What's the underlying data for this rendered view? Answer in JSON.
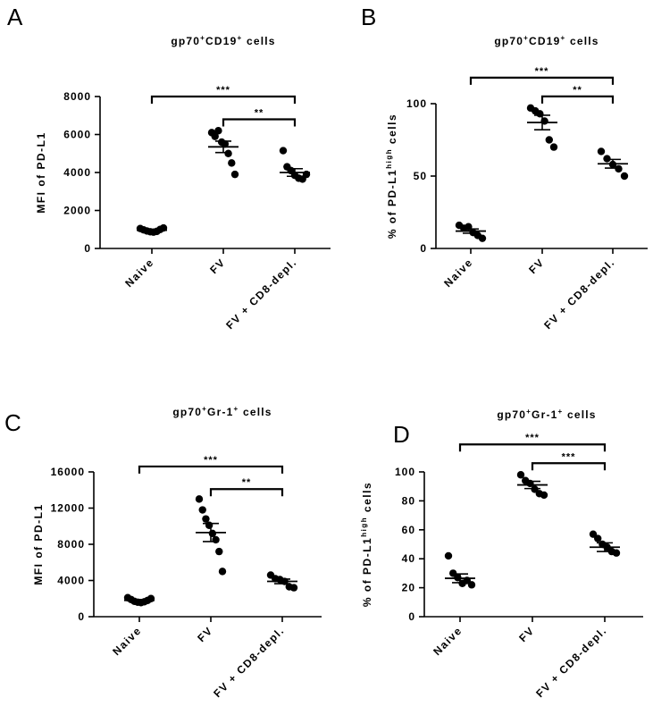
{
  "chart_data": [
    {
      "panel": "A",
      "type": "scatter",
      "title": "gp70",
      "title_parts": [
        {
          "text": "gp70",
          "sup": false
        },
        {
          "text": "+",
          "sup": true
        },
        {
          "text": "CD19",
          "sup": false
        },
        {
          "text": "+",
          "sup": true
        },
        {
          "text": " cells",
          "sup": false
        }
      ],
      "ylabel_parts": [
        {
          "text": "MFI of PD-L1",
          "sup": false
        }
      ],
      "ylim": [
        0,
        8000
      ],
      "yticks": [
        0,
        2000,
        4000,
        6000,
        8000
      ],
      "categories": [
        "Naive",
        "FV",
        "FV + CD8-depl."
      ],
      "groups": [
        {
          "points": [
            1050,
            980,
            920,
            880,
            860,
            900,
            1000,
            1080
          ],
          "mean": 960,
          "sem": 40
        },
        {
          "points": [
            6100,
            5900,
            6200,
            5600,
            5500,
            5000,
            4500,
            3900
          ],
          "mean": 5350,
          "sem": 300
        },
        {
          "points": [
            5150,
            4300,
            4100,
            3850,
            3700,
            3650,
            3900
          ],
          "mean": 4000,
          "sem": 200
        }
      ],
      "comparisons": [
        {
          "from": 0,
          "to": 2,
          "label": "***",
          "y": 8000
        },
        {
          "from": 1,
          "to": 2,
          "label": "**",
          "y": 6800
        }
      ]
    },
    {
      "panel": "B",
      "type": "scatter",
      "title_parts": [
        {
          "text": "gp70",
          "sup": false
        },
        {
          "text": "+",
          "sup": true
        },
        {
          "text": "CD19",
          "sup": false
        },
        {
          "text": "+",
          "sup": true
        },
        {
          "text": " cells",
          "sup": false
        }
      ],
      "ylabel_parts": [
        {
          "text": "% of PD-L1",
          "sup": false
        },
        {
          "text": "high",
          "sup": true
        },
        {
          "text": " cells",
          "sup": false
        }
      ],
      "ylim": [
        0,
        100
      ],
      "yticks": [
        0,
        50,
        100
      ],
      "categories": [
        "Naive",
        "FV",
        "FV + CD8-depl."
      ],
      "groups": [
        {
          "points": [
            16,
            14,
            15,
            11,
            9,
            7
          ],
          "mean": 12,
          "sem": 1.5
        },
        {
          "points": [
            97,
            95,
            93,
            88,
            75,
            70
          ],
          "mean": 87,
          "sem": 5
        },
        {
          "points": [
            67,
            62,
            58,
            55,
            50
          ],
          "mean": 58.5,
          "sem": 3
        }
      ],
      "comparisons": [
        {
          "from": 0,
          "to": 2,
          "label": "***",
          "y": 118
        },
        {
          "from": 1,
          "to": 2,
          "label": "**",
          "y": 105
        }
      ]
    },
    {
      "panel": "C",
      "type": "scatter",
      "title_parts": [
        {
          "text": "gp70",
          "sup": false
        },
        {
          "text": "+",
          "sup": true
        },
        {
          "text": "Gr-1",
          "sup": false
        },
        {
          "text": "+",
          "sup": true
        },
        {
          "text": " cells",
          "sup": false
        }
      ],
      "ylabel_parts": [
        {
          "text": "MFI of PD-L1",
          "sup": false
        }
      ],
      "ylim": [
        0,
        16000
      ],
      "yticks": [
        0,
        4000,
        8000,
        12000,
        16000
      ],
      "categories": [
        "Naive",
        "FV",
        "FV + CD8-depl."
      ],
      "groups": [
        {
          "points": [
            2100,
            1900,
            1700,
            1600,
            1550,
            1650,
            1800,
            2000
          ],
          "mean": 1800,
          "sem": 100
        },
        {
          "points": [
            13000,
            11800,
            10800,
            10100,
            9200,
            8500,
            7200,
            5000
          ],
          "mean": 9300,
          "sem": 1000
        },
        {
          "points": [
            4600,
            4200,
            4100,
            3900,
            3300,
            3200
          ],
          "mean": 3900,
          "sem": 250
        }
      ],
      "comparisons": [
        {
          "from": 0,
          "to": 2,
          "label": "***",
          "y": 16600
        },
        {
          "from": 1,
          "to": 2,
          "label": "**",
          "y": 14100
        }
      ]
    },
    {
      "panel": "D",
      "type": "scatter",
      "title_parts": [
        {
          "text": "gp70",
          "sup": false
        },
        {
          "text": "+",
          "sup": true
        },
        {
          "text": "Gr-1",
          "sup": false
        },
        {
          "text": "+",
          "sup": true
        },
        {
          "text": " cells",
          "sup": false
        }
      ],
      "ylabel_parts": [
        {
          "text": "% of PD-L1",
          "sup": false
        },
        {
          "text": "high",
          "sup": true
        },
        {
          "text": " cells",
          "sup": false
        }
      ],
      "ylim": [
        0,
        100
      ],
      "yticks": [
        0,
        20,
        40,
        60,
        80,
        100
      ],
      "categories": [
        "Naive",
        "FV",
        "FV + CD8-depl."
      ],
      "groups": [
        {
          "points": [
            42,
            30,
            27,
            23,
            25,
            22
          ],
          "mean": 26.5,
          "sem": 3
        },
        {
          "points": [
            98,
            94,
            92,
            88,
            85,
            84
          ],
          "mean": 91,
          "sem": 2.5
        },
        {
          "points": [
            57,
            54,
            50,
            48,
            45,
            44
          ],
          "mean": 48,
          "sem": 3
        }
      ],
      "comparisons": [
        {
          "from": 0,
          "to": 2,
          "label": "***",
          "y": 119
        },
        {
          "from": 1,
          "to": 2,
          "label": "***",
          "y": 106
        }
      ]
    }
  ]
}
